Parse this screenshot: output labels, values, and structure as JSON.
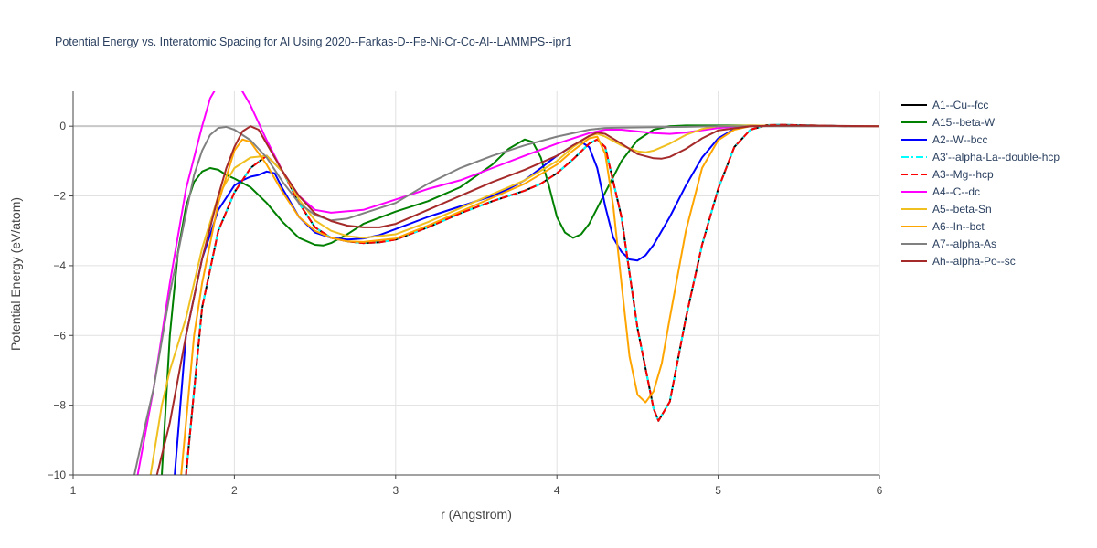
{
  "chart_data": {
    "type": "line",
    "title": "Potential Energy vs. Interatomic Spacing for Al Using 2020--Farkas-D--Fe-Ni-Cr-Co-Al--LAMMPS--ipr1",
    "xlabel": "r (Angstrom)",
    "ylabel": "Potential Energy (eV/atom)",
    "xlim": [
      1,
      6
    ],
    "ylim": [
      -10,
      1
    ],
    "xticks": [
      1,
      2,
      3,
      4,
      5,
      6
    ],
    "yticks": [
      -10,
      -8,
      -6,
      -4,
      -2,
      0
    ],
    "grid": true,
    "legend_position": "right",
    "series": [
      {
        "name": "A1--Cu--fcc",
        "color": "#000000",
        "dash": "solid",
        "x": [
          1.7,
          1.8,
          1.9,
          2.0,
          2.1,
          2.2,
          2.3,
          2.4,
          2.5,
          2.6,
          2.7,
          2.8,
          2.9,
          3.0,
          3.2,
          3.4,
          3.6,
          3.8,
          3.9,
          4.0,
          4.1,
          4.2,
          4.25,
          4.3,
          4.4,
          4.5,
          4.6,
          4.63,
          4.7,
          4.8,
          4.9,
          5.0,
          5.1,
          5.2,
          5.3,
          5.4,
          5.6,
          5.8,
          6.0
        ],
        "y": [
          -10,
          -5.2,
          -3.0,
          -1.9,
          -1.2,
          -0.85,
          -1.3,
          -2.2,
          -2.9,
          -3.2,
          -3.3,
          -3.35,
          -3.33,
          -3.25,
          -2.9,
          -2.5,
          -2.15,
          -1.85,
          -1.65,
          -1.35,
          -0.95,
          -0.5,
          -0.38,
          -0.6,
          -2.6,
          -5.8,
          -8.1,
          -8.45,
          -7.9,
          -5.5,
          -3.4,
          -1.8,
          -0.6,
          -0.1,
          0.03,
          0.04,
          0.02,
          0.0,
          0.0
        ]
      },
      {
        "name": "A15--beta-W",
        "color": "#008000",
        "dash": "solid",
        "x": [
          1.55,
          1.6,
          1.65,
          1.7,
          1.75,
          1.8,
          1.85,
          1.9,
          1.95,
          2.0,
          2.1,
          2.2,
          2.3,
          2.4,
          2.5,
          2.55,
          2.6,
          2.7,
          2.8,
          3.0,
          3.2,
          3.4,
          3.6,
          3.7,
          3.8,
          3.85,
          3.9,
          3.95,
          4.0,
          4.05,
          4.1,
          4.15,
          4.2,
          4.3,
          4.4,
          4.5,
          4.6,
          4.7,
          4.8,
          5.0,
          5.2,
          5.4,
          6.0
        ],
        "y": [
          -10,
          -6.0,
          -3.6,
          -2.3,
          -1.6,
          -1.3,
          -1.2,
          -1.25,
          -1.4,
          -1.5,
          -1.75,
          -2.2,
          -2.75,
          -3.2,
          -3.4,
          -3.42,
          -3.35,
          -3.1,
          -2.8,
          -2.45,
          -2.15,
          -1.75,
          -1.1,
          -0.65,
          -0.38,
          -0.45,
          -0.9,
          -1.7,
          -2.6,
          -3.05,
          -3.2,
          -3.1,
          -2.8,
          -1.9,
          -1.0,
          -0.4,
          -0.1,
          0.0,
          0.02,
          0.02,
          0.02,
          0.01,
          0.0
        ]
      },
      {
        "name": "A2--W--bcc",
        "color": "#0000ff",
        "dash": "solid",
        "x": [
          1.63,
          1.7,
          1.8,
          1.9,
          2.0,
          2.05,
          2.1,
          2.15,
          2.2,
          2.25,
          2.3,
          2.4,
          2.5,
          2.6,
          2.7,
          2.8,
          2.9,
          3.0,
          3.2,
          3.4,
          3.6,
          3.7,
          3.8,
          3.9,
          4.0,
          4.1,
          4.15,
          4.2,
          4.25,
          4.3,
          4.35,
          4.4,
          4.45,
          4.5,
          4.55,
          4.6,
          4.7,
          4.8,
          4.9,
          5.0,
          5.1,
          5.2,
          5.4,
          6.0
        ],
        "y": [
          -10,
          -6.0,
          -3.8,
          -2.4,
          -1.7,
          -1.55,
          -1.45,
          -1.4,
          -1.3,
          -1.35,
          -1.8,
          -2.6,
          -3.05,
          -3.2,
          -3.25,
          -3.22,
          -3.12,
          -2.95,
          -2.6,
          -2.3,
          -2.0,
          -1.8,
          -1.55,
          -1.2,
          -0.85,
          -0.55,
          -0.45,
          -0.6,
          -1.2,
          -2.3,
          -3.2,
          -3.6,
          -3.82,
          -3.85,
          -3.7,
          -3.4,
          -2.6,
          -1.7,
          -0.9,
          -0.35,
          -0.08,
          0.0,
          0.01,
          0.0
        ]
      },
      {
        "name": "A3'--alpha-La--double-hcp",
        "color": "#00ffff",
        "dash": "dashdot",
        "x": [
          1.7,
          1.8,
          1.9,
          2.0,
          2.1,
          2.2,
          2.3,
          2.4,
          2.5,
          2.6,
          2.7,
          2.8,
          2.9,
          3.0,
          3.2,
          3.4,
          3.6,
          3.8,
          3.9,
          4.0,
          4.1,
          4.2,
          4.25,
          4.3,
          4.4,
          4.5,
          4.6,
          4.63,
          4.7,
          4.8,
          4.9,
          5.0,
          5.1,
          5.2,
          5.3,
          5.4,
          5.6,
          5.8,
          6.0
        ],
        "y": [
          -10,
          -5.2,
          -3.0,
          -1.9,
          -1.2,
          -0.85,
          -1.3,
          -2.2,
          -2.9,
          -3.2,
          -3.3,
          -3.35,
          -3.33,
          -3.25,
          -2.9,
          -2.5,
          -2.15,
          -1.85,
          -1.65,
          -1.35,
          -0.95,
          -0.5,
          -0.38,
          -0.6,
          -2.6,
          -5.8,
          -8.1,
          -8.45,
          -7.9,
          -5.5,
          -3.4,
          -1.8,
          -0.6,
          -0.1,
          0.03,
          0.04,
          0.02,
          0.0,
          0.0
        ]
      },
      {
        "name": "A3--Mg--hcp",
        "color": "#ff0000",
        "dash": "dash",
        "x": [
          1.7,
          1.8,
          1.9,
          2.0,
          2.1,
          2.2,
          2.3,
          2.4,
          2.5,
          2.6,
          2.7,
          2.8,
          2.9,
          3.0,
          3.2,
          3.4,
          3.6,
          3.8,
          3.9,
          4.0,
          4.1,
          4.2,
          4.25,
          4.3,
          4.4,
          4.5,
          4.6,
          4.63,
          4.7,
          4.8,
          4.9,
          5.0,
          5.1,
          5.2,
          5.3,
          5.4,
          5.6,
          5.8,
          6.0
        ],
        "y": [
          -10,
          -5.2,
          -3.0,
          -1.9,
          -1.2,
          -0.85,
          -1.3,
          -2.2,
          -2.9,
          -3.2,
          -3.3,
          -3.35,
          -3.33,
          -3.25,
          -2.9,
          -2.5,
          -2.15,
          -1.85,
          -1.65,
          -1.35,
          -0.95,
          -0.5,
          -0.38,
          -0.6,
          -2.6,
          -5.8,
          -8.1,
          -8.45,
          -7.9,
          -5.5,
          -3.4,
          -1.8,
          -0.6,
          -0.1,
          0.03,
          0.04,
          0.02,
          0.0,
          0.0
        ]
      },
      {
        "name": "A4--C--dc",
        "color": "#ff00ff",
        "dash": "solid",
        "x": [
          1.4,
          1.5,
          1.6,
          1.7,
          1.8,
          1.85,
          1.9,
          2.0,
          2.05,
          2.1,
          2.2,
          2.3,
          2.4,
          2.5,
          2.6,
          2.8,
          3.0,
          3.2,
          3.4,
          3.6,
          3.8,
          4.0,
          4.2,
          4.3,
          4.4,
          4.5,
          4.6,
          4.7,
          4.8,
          5.0,
          5.2,
          5.4,
          6.0
        ],
        "y": [
          -10,
          -7.5,
          -4.5,
          -1.8,
          0.0,
          0.8,
          1.2,
          1.2,
          1.0,
          0.6,
          -0.4,
          -1.3,
          -2.0,
          -2.4,
          -2.48,
          -2.4,
          -2.1,
          -1.8,
          -1.55,
          -1.2,
          -0.85,
          -0.5,
          -0.2,
          -0.1,
          -0.1,
          -0.15,
          -0.2,
          -0.22,
          -0.18,
          -0.05,
          0.02,
          0.01,
          0.0
        ]
      },
      {
        "name": "A5--beta-Sn",
        "color": "#f0c020",
        "dash": "solid",
        "x": [
          1.48,
          1.55,
          1.6,
          1.7,
          1.8,
          1.9,
          2.0,
          2.1,
          2.2,
          2.3,
          2.4,
          2.5,
          2.6,
          2.7,
          2.8,
          3.0,
          3.2,
          3.4,
          3.6,
          3.8,
          4.0,
          4.1,
          4.2,
          4.25,
          4.3,
          4.4,
          4.5,
          4.55,
          4.6,
          4.7,
          4.8,
          4.9,
          5.0,
          5.2,
          5.4,
          6.0
        ],
        "y": [
          -10,
          -8.0,
          -7.0,
          -5.5,
          -3.5,
          -2.0,
          -1.2,
          -0.9,
          -0.85,
          -1.3,
          -2.1,
          -2.7,
          -3.0,
          -3.15,
          -3.2,
          -3.1,
          -2.75,
          -2.35,
          -1.95,
          -1.55,
          -1.0,
          -0.6,
          -0.28,
          -0.22,
          -0.3,
          -0.55,
          -0.72,
          -0.75,
          -0.7,
          -0.5,
          -0.25,
          -0.08,
          0.0,
          0.02,
          0.01,
          0.0
        ]
      },
      {
        "name": "A6--In--bct",
        "color": "#ffa500",
        "dash": "solid",
        "x": [
          1.67,
          1.75,
          1.8,
          1.9,
          2.0,
          2.05,
          2.1,
          2.2,
          2.3,
          2.4,
          2.5,
          2.6,
          2.7,
          2.8,
          3.0,
          3.2,
          3.4,
          3.6,
          3.8,
          4.0,
          4.1,
          4.2,
          4.25,
          4.3,
          4.35,
          4.4,
          4.45,
          4.5,
          4.55,
          4.6,
          4.65,
          4.7,
          4.8,
          4.9,
          5.0,
          5.1,
          5.2,
          5.4,
          6.0
        ],
        "y": [
          -10,
          -6.0,
          -4.5,
          -2.2,
          -0.7,
          -0.38,
          -0.45,
          -1.1,
          -1.9,
          -2.6,
          -3.0,
          -3.2,
          -3.3,
          -3.32,
          -3.22,
          -2.85,
          -2.45,
          -2.05,
          -1.65,
          -1.1,
          -0.7,
          -0.35,
          -0.3,
          -0.8,
          -2.3,
          -4.5,
          -6.6,
          -7.7,
          -7.92,
          -7.6,
          -6.8,
          -5.5,
          -3.0,
          -1.2,
          -0.4,
          -0.1,
          0.0,
          0.01,
          0.0
        ]
      },
      {
        "name": "A7--alpha-As",
        "color": "#808080",
        "dash": "solid",
        "x": [
          1.38,
          1.45,
          1.5,
          1.6,
          1.7,
          1.75,
          1.8,
          1.85,
          1.9,
          1.95,
          2.0,
          2.1,
          2.2,
          2.3,
          2.4,
          2.5,
          2.6,
          2.7,
          2.8,
          3.0,
          3.2,
          3.4,
          3.6,
          3.8,
          4.0,
          4.2,
          4.3,
          4.4,
          4.6,
          4.8,
          5.0,
          5.2,
          5.4,
          6.0
        ],
        "y": [
          -10,
          -8.5,
          -7.5,
          -4.8,
          -2.5,
          -1.4,
          -0.7,
          -0.25,
          -0.05,
          -0.02,
          -0.1,
          -0.4,
          -0.9,
          -1.6,
          -2.2,
          -2.55,
          -2.7,
          -2.65,
          -2.5,
          -2.2,
          -1.65,
          -1.2,
          -0.85,
          -0.55,
          -0.3,
          -0.1,
          -0.05,
          -0.04,
          -0.03,
          -0.02,
          0.0,
          0.0,
          0.0,
          0.0
        ]
      },
      {
        "name": "Ah--alpha-Po--sc",
        "color": "#a52a2a",
        "dash": "solid",
        "x": [
          1.52,
          1.6,
          1.7,
          1.8,
          1.9,
          1.95,
          2.0,
          2.05,
          2.1,
          2.15,
          2.2,
          2.3,
          2.4,
          2.5,
          2.6,
          2.7,
          2.8,
          2.9,
          3.0,
          3.2,
          3.4,
          3.6,
          3.8,
          4.0,
          4.1,
          4.2,
          4.25,
          4.3,
          4.4,
          4.5,
          4.6,
          4.65,
          4.7,
          4.8,
          4.9,
          5.0,
          5.2,
          5.4,
          6.0
        ],
        "y": [
          -10,
          -8.5,
          -6.0,
          -3.8,
          -2.0,
          -1.2,
          -0.6,
          -0.15,
          0.0,
          -0.1,
          -0.5,
          -1.3,
          -2.0,
          -2.5,
          -2.72,
          -2.85,
          -2.9,
          -2.9,
          -2.8,
          -2.4,
          -2.0,
          -1.6,
          -1.25,
          -0.85,
          -0.55,
          -0.28,
          -0.18,
          -0.22,
          -0.5,
          -0.8,
          -0.92,
          -0.93,
          -0.88,
          -0.65,
          -0.35,
          -0.12,
          0.0,
          0.02,
          0.0
        ]
      }
    ]
  }
}
